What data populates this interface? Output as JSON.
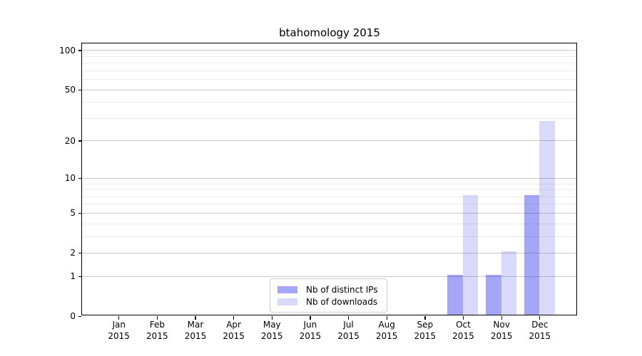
{
  "figure": {
    "background": "#ffffff"
  },
  "chart_data": {
    "type": "bar",
    "title": "btahomology 2015",
    "categories": [
      "Jan",
      "Feb",
      "Mar",
      "Apr",
      "May",
      "Jun",
      "Jul",
      "Aug",
      "Sep",
      "Oct",
      "Nov",
      "Dec"
    ],
    "x_year_label": "2015",
    "series": [
      {
        "name": "Nb of distinct IPs",
        "fill": "rgba(0,0,230,0.35)",
        "legend_color": "#a6a6f6",
        "values": [
          0,
          0,
          0,
          0,
          0,
          0,
          0,
          0,
          0,
          1,
          1,
          7
        ]
      },
      {
        "name": "Nb of downloads",
        "fill": "rgba(0,0,230,0.15)",
        "legend_color": "#d9d9fb",
        "values": [
          0,
          0,
          0,
          0,
          0,
          0,
          0,
          0,
          0,
          7,
          2,
          28
        ]
      }
    ],
    "y_axis": {
      "scale": "log1p",
      "tick_labels": [
        0,
        1,
        2,
        5,
        10,
        20,
        50,
        100
      ],
      "minor_gridlines": [
        3,
        4,
        6,
        7,
        8,
        9,
        30,
        40,
        60,
        70,
        80,
        90
      ],
      "ylim": [
        0,
        115
      ]
    },
    "grid": {
      "major_color": "#c9c9c9",
      "minor_color": "#ebebeb"
    },
    "legend": {
      "position": "lower center"
    }
  }
}
